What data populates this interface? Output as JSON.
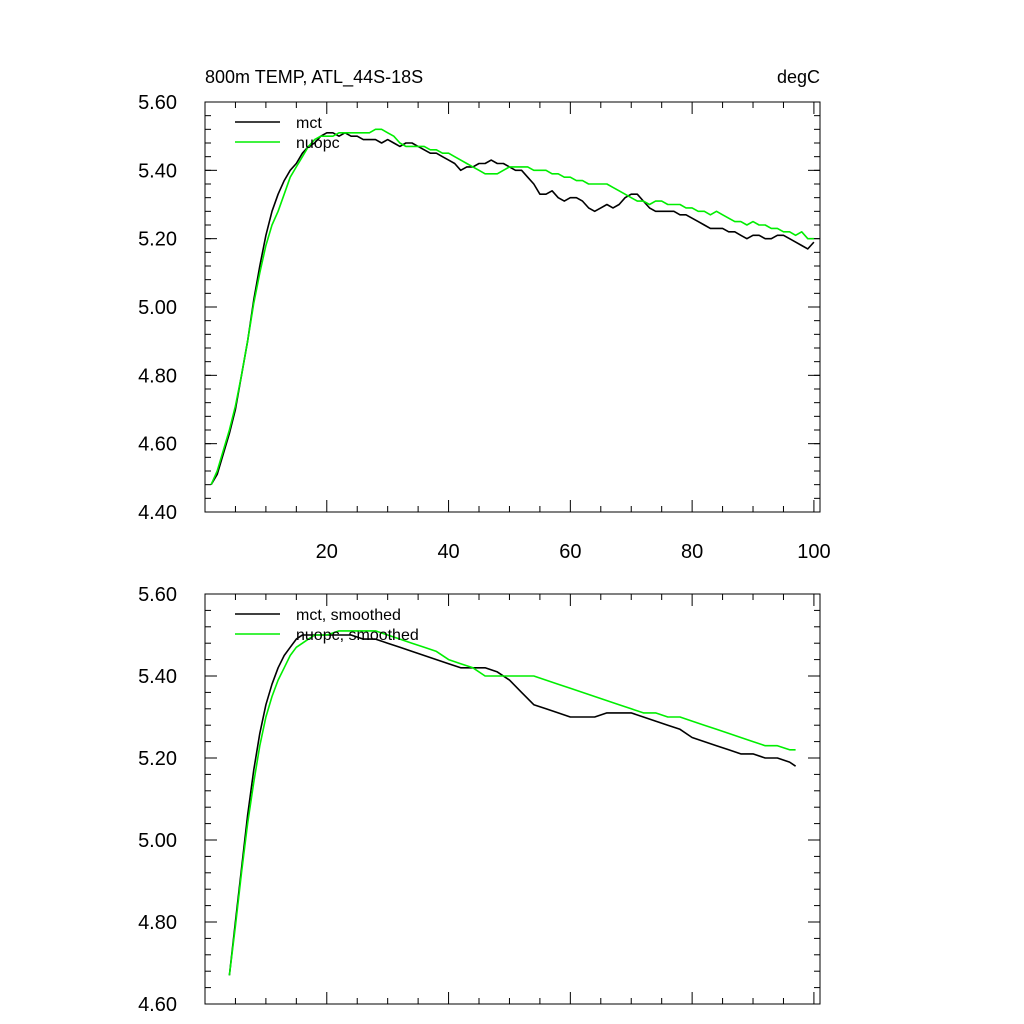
{
  "colors": {
    "mct": "#000000",
    "nuopc": "#00ee00",
    "axis": "#000000",
    "background": "#ffffff"
  },
  "chart_data": [
    {
      "type": "line",
      "title": "800m TEMP, ATL_44S-18S",
      "units": "degC",
      "xlabel": "",
      "ylabel": "",
      "xlim": [
        0,
        101
      ],
      "ylim": [
        4.4,
        5.6
      ],
      "xticks": [
        20,
        40,
        60,
        80,
        100
      ],
      "xtick_labels": [
        "20",
        "40",
        "60",
        "80",
        "100"
      ],
      "yticks": [
        4.4,
        4.6,
        4.8,
        5.0,
        5.2,
        5.4,
        5.6
      ],
      "ytick_labels": [
        "4.40",
        "4.60",
        "4.80",
        "5.00",
        "5.20",
        "5.40",
        "5.60"
      ],
      "legend": "top-left",
      "grid": false,
      "series": [
        {
          "name": "mct",
          "color": "#000000",
          "x": [
            1,
            2,
            3,
            4,
            5,
            6,
            7,
            8,
            9,
            10,
            11,
            12,
            13,
            14,
            15,
            16,
            17,
            18,
            19,
            20,
            21,
            22,
            23,
            24,
            25,
            26,
            27,
            28,
            29,
            30,
            31,
            32,
            33,
            34,
            35,
            36,
            37,
            38,
            39,
            40,
            41,
            42,
            43,
            44,
            45,
            46,
            47,
            48,
            49,
            50,
            51,
            52,
            53,
            54,
            55,
            56,
            57,
            58,
            59,
            60,
            61,
            62,
            63,
            64,
            65,
            66,
            67,
            68,
            69,
            70,
            71,
            72,
            73,
            74,
            75,
            76,
            77,
            78,
            79,
            80,
            81,
            82,
            83,
            84,
            85,
            86,
            87,
            88,
            89,
            90,
            91,
            92,
            93,
            94,
            95,
            96,
            97,
            98,
            99,
            100
          ],
          "y": [
            4.48,
            4.51,
            4.57,
            4.63,
            4.7,
            4.8,
            4.9,
            5.02,
            5.12,
            5.21,
            5.28,
            5.33,
            5.37,
            5.4,
            5.42,
            5.45,
            5.47,
            5.48,
            5.5,
            5.51,
            5.51,
            5.5,
            5.51,
            5.5,
            5.5,
            5.49,
            5.49,
            5.49,
            5.48,
            5.49,
            5.48,
            5.47,
            5.48,
            5.48,
            5.47,
            5.46,
            5.45,
            5.45,
            5.44,
            5.43,
            5.42,
            5.4,
            5.41,
            5.41,
            5.42,
            5.42,
            5.43,
            5.42,
            5.42,
            5.41,
            5.4,
            5.4,
            5.38,
            5.36,
            5.33,
            5.33,
            5.34,
            5.32,
            5.31,
            5.32,
            5.32,
            5.31,
            5.29,
            5.28,
            5.29,
            5.3,
            5.29,
            5.3,
            5.32,
            5.33,
            5.33,
            5.31,
            5.29,
            5.28,
            5.28,
            5.28,
            5.28,
            5.27,
            5.27,
            5.26,
            5.25,
            5.24,
            5.23,
            5.23,
            5.23,
            5.22,
            5.22,
            5.21,
            5.2,
            5.21,
            5.21,
            5.2,
            5.2,
            5.21,
            5.21,
            5.2,
            5.19,
            5.18,
            5.17,
            5.19
          ]
        },
        {
          "name": "nuopc",
          "color": "#00ee00",
          "x": [
            1,
            2,
            3,
            4,
            5,
            6,
            7,
            8,
            9,
            10,
            11,
            12,
            13,
            14,
            15,
            16,
            17,
            18,
            19,
            20,
            21,
            22,
            23,
            24,
            25,
            26,
            27,
            28,
            29,
            30,
            31,
            32,
            33,
            34,
            35,
            36,
            37,
            38,
            39,
            40,
            41,
            42,
            43,
            44,
            45,
            46,
            47,
            48,
            49,
            50,
            51,
            52,
            53,
            54,
            55,
            56,
            57,
            58,
            59,
            60,
            61,
            62,
            63,
            64,
            65,
            66,
            67,
            68,
            69,
            70,
            71,
            72,
            73,
            74,
            75,
            76,
            77,
            78,
            79,
            80,
            81,
            82,
            83,
            84,
            85,
            86,
            87,
            88,
            89,
            90,
            91,
            92,
            93,
            94,
            95,
            96,
            97,
            98,
            99,
            100
          ],
          "y": [
            4.48,
            4.52,
            4.58,
            4.64,
            4.71,
            4.8,
            4.9,
            5.01,
            5.1,
            5.18,
            5.24,
            5.28,
            5.33,
            5.38,
            5.41,
            5.44,
            5.47,
            5.49,
            5.5,
            5.5,
            5.5,
            5.51,
            5.51,
            5.51,
            5.51,
            5.51,
            5.51,
            5.52,
            5.52,
            5.51,
            5.5,
            5.48,
            5.47,
            5.47,
            5.47,
            5.47,
            5.46,
            5.46,
            5.45,
            5.45,
            5.44,
            5.43,
            5.42,
            5.41,
            5.4,
            5.39,
            5.39,
            5.39,
            5.4,
            5.41,
            5.41,
            5.41,
            5.41,
            5.4,
            5.4,
            5.4,
            5.39,
            5.39,
            5.38,
            5.38,
            5.37,
            5.37,
            5.36,
            5.36,
            5.36,
            5.36,
            5.35,
            5.34,
            5.33,
            5.32,
            5.31,
            5.31,
            5.3,
            5.31,
            5.31,
            5.3,
            5.3,
            5.3,
            5.29,
            5.29,
            5.28,
            5.28,
            5.27,
            5.28,
            5.27,
            5.26,
            5.25,
            5.25,
            5.24,
            5.25,
            5.24,
            5.24,
            5.23,
            5.23,
            5.22,
            5.22,
            5.21,
            5.22,
            5.2,
            5.2
          ]
        }
      ]
    },
    {
      "type": "line",
      "title": "",
      "xlabel": "",
      "ylabel": "",
      "xlim": [
        0,
        101
      ],
      "ylim": [
        4.6,
        5.6
      ],
      "xticks": [
        20,
        40,
        60,
        80,
        100
      ],
      "xtick_labels": [],
      "yticks": [
        4.6,
        4.8,
        5.0,
        5.2,
        5.4,
        5.6
      ],
      "ytick_labels": [
        "4.60",
        "4.80",
        "5.00",
        "5.20",
        "5.40",
        "5.60"
      ],
      "legend": "top-left",
      "grid": false,
      "series": [
        {
          "name": "mct, smoothed",
          "color": "#000000",
          "x": [
            4,
            5,
            6,
            7,
            8,
            9,
            10,
            11,
            12,
            13,
            14,
            15,
            16,
            17,
            18,
            19,
            20,
            22,
            24,
            26,
            28,
            30,
            32,
            34,
            36,
            38,
            40,
            42,
            44,
            46,
            48,
            50,
            52,
            54,
            56,
            58,
            60,
            62,
            64,
            66,
            68,
            70,
            72,
            74,
            76,
            78,
            80,
            82,
            84,
            86,
            88,
            90,
            92,
            94,
            96,
            97
          ],
          "y": [
            4.67,
            4.8,
            4.93,
            5.06,
            5.17,
            5.26,
            5.33,
            5.38,
            5.42,
            5.45,
            5.47,
            5.49,
            5.5,
            5.5,
            5.5,
            5.5,
            5.5,
            5.5,
            5.5,
            5.49,
            5.49,
            5.48,
            5.47,
            5.46,
            5.45,
            5.44,
            5.43,
            5.42,
            5.42,
            5.42,
            5.41,
            5.39,
            5.36,
            5.33,
            5.32,
            5.31,
            5.3,
            5.3,
            5.3,
            5.31,
            5.31,
            5.31,
            5.3,
            5.29,
            5.28,
            5.27,
            5.25,
            5.24,
            5.23,
            5.22,
            5.21,
            5.21,
            5.2,
            5.2,
            5.19,
            5.18
          ]
        },
        {
          "name": "nuopc, smoothed",
          "color": "#00ee00",
          "x": [
            4,
            5,
            6,
            7,
            8,
            9,
            10,
            11,
            12,
            13,
            14,
            15,
            16,
            17,
            18,
            19,
            20,
            22,
            24,
            26,
            28,
            30,
            32,
            34,
            36,
            38,
            40,
            42,
            44,
            46,
            48,
            50,
            52,
            54,
            56,
            58,
            60,
            62,
            64,
            66,
            68,
            70,
            72,
            74,
            76,
            78,
            80,
            82,
            84,
            86,
            88,
            90,
            92,
            94,
            96,
            97
          ],
          "y": [
            4.67,
            4.79,
            4.92,
            5.04,
            5.14,
            5.23,
            5.3,
            5.35,
            5.39,
            5.42,
            5.45,
            5.47,
            5.48,
            5.49,
            5.5,
            5.5,
            5.5,
            5.51,
            5.51,
            5.51,
            5.51,
            5.5,
            5.49,
            5.48,
            5.47,
            5.46,
            5.44,
            5.43,
            5.42,
            5.4,
            5.4,
            5.4,
            5.4,
            5.4,
            5.39,
            5.38,
            5.37,
            5.36,
            5.35,
            5.34,
            5.33,
            5.32,
            5.31,
            5.31,
            5.3,
            5.3,
            5.29,
            5.28,
            5.27,
            5.26,
            5.25,
            5.24,
            5.23,
            5.23,
            5.22,
            5.22
          ]
        }
      ]
    }
  ]
}
